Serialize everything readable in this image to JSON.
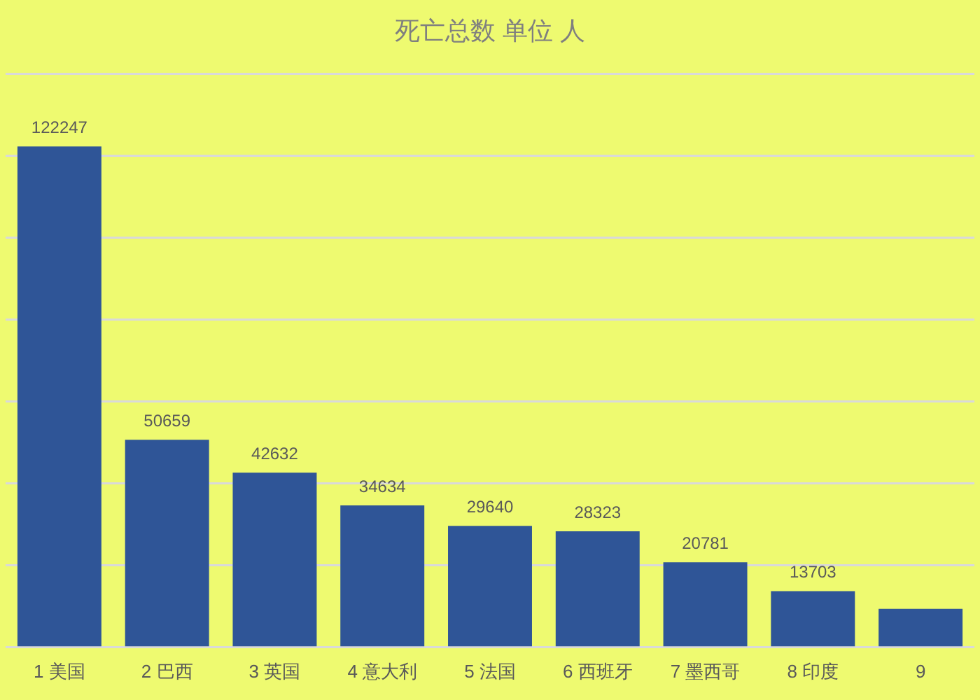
{
  "chart_data": {
    "type": "bar",
    "title": "死亡总数 单位 人",
    "categories": [
      "1 美国",
      "2 巴西",
      "3 英国",
      "4 意大利",
      "5 法国",
      "6 西班牙",
      "7 墨西哥",
      "8 印度",
      "9"
    ],
    "values": [
      122247,
      50659,
      42632,
      34634,
      29640,
      28323,
      20781,
      13703,
      9400
    ],
    "value_labels": [
      "122247",
      "50659",
      "42632",
      "34634",
      "29640",
      "28323",
      "20781",
      "13703",
      null
    ],
    "color": "#2f5597",
    "ylim": [
      0,
      140000
    ],
    "yticks": [
      {
        "value": 0,
        "label": null
      },
      {
        "value": 20000,
        "label": null
      },
      {
        "value": 40000,
        "label": null
      },
      {
        "value": 60000,
        "label": null
      },
      {
        "value": 80000,
        "label": null
      },
      {
        "value": 100000,
        "label": null
      },
      {
        "value": 120000,
        "label": null
      },
      {
        "value": 140000,
        "label": null
      }
    ],
    "grid": "y",
    "tick_labels": "x"
  }
}
